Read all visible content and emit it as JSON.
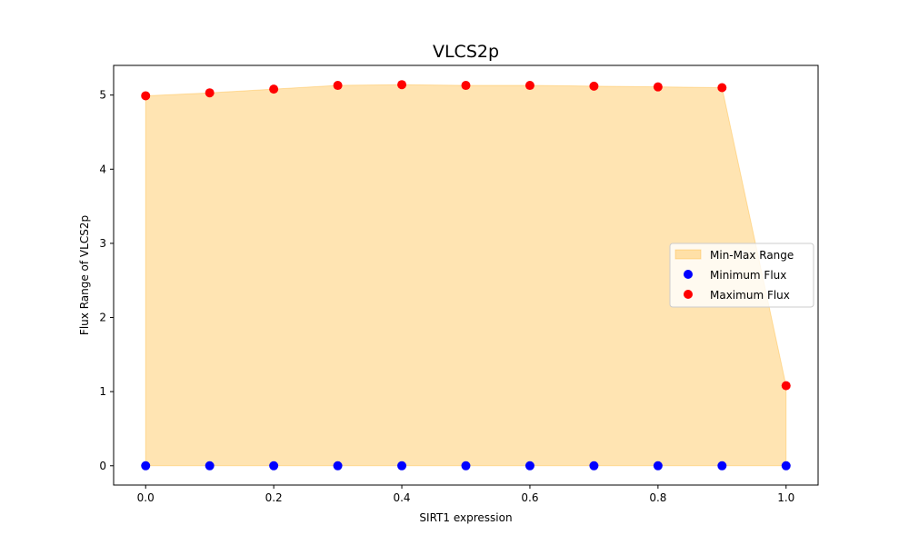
{
  "chart_data": {
    "type": "scatter",
    "title": "VLCS2p",
    "xlabel": "SIRT1 expression",
    "ylabel": "Flux Range of VLCS2p",
    "x": [
      0.0,
      0.1,
      0.2,
      0.3,
      0.4,
      0.5,
      0.6,
      0.7,
      0.8,
      0.9,
      1.0
    ],
    "series": [
      {
        "name": "Minimum Flux",
        "color": "#0000ff",
        "values": [
          0,
          0,
          0,
          0,
          0,
          0,
          0,
          0,
          0,
          0,
          0
        ]
      },
      {
        "name": "Maximum Flux",
        "color": "#ff0000",
        "values": [
          4.99,
          5.03,
          5.08,
          5.13,
          5.14,
          5.13,
          5.13,
          5.12,
          5.11,
          5.1,
          1.08
        ]
      }
    ],
    "fill": {
      "name": "Min-Max Range",
      "color": "#ffa500",
      "opacity": 0.3
    },
    "xlim": [
      -0.05,
      1.05
    ],
    "ylim": [
      -0.26,
      5.4
    ],
    "xticks": [
      "0.0",
      "0.2",
      "0.4",
      "0.6",
      "0.8",
      "1.0"
    ],
    "yticks": [
      "0",
      "1",
      "2",
      "3",
      "4",
      "5"
    ],
    "grid": false,
    "legend_position": "center-right"
  }
}
